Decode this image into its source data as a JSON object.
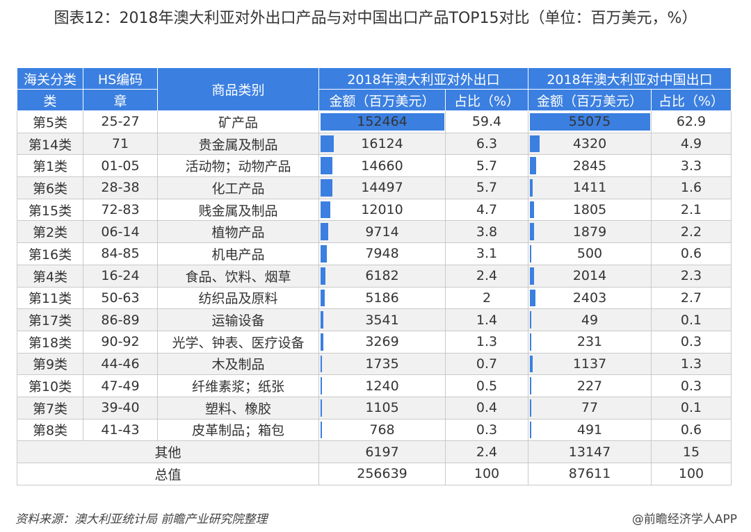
{
  "title": "图表12：2018年澳大利亚对外出口产品与对中国出口产品TOP15对比（单位：百万美元，%）",
  "header": {
    "col_category_1": "海关分类",
    "col_category_2": "类",
    "col_hs_1": "HS编码",
    "col_hs_2": "章",
    "col_product": "商品类别",
    "group_total": "2018年澳大利亚对外出口",
    "group_china": "2018年澳大利亚对中国出口",
    "amount_label": "金额（百万美元）",
    "share_label": "占比（%）"
  },
  "rows": [
    {
      "cat": "第5类",
      "hs": "25-27",
      "product": "矿产品",
      "total_amount": 152464,
      "total_share": "59.4",
      "china_amount": 55075,
      "china_share": "62.9"
    },
    {
      "cat": "第14类",
      "hs": "71",
      "product": "贵金属及制品",
      "total_amount": 16124,
      "total_share": "6.3",
      "china_amount": 4320,
      "china_share": "4.9"
    },
    {
      "cat": "第1类",
      "hs": "01-05",
      "product": "活动物；动物产品",
      "total_amount": 14660,
      "total_share": "5.7",
      "china_amount": 2845,
      "china_share": "3.3"
    },
    {
      "cat": "第6类",
      "hs": "28-38",
      "product": "化工产品",
      "total_amount": 14497,
      "total_share": "5.7",
      "china_amount": 1411,
      "china_share": "1.6"
    },
    {
      "cat": "第15类",
      "hs": "72-83",
      "product": "贱金属及制品",
      "total_amount": 12010,
      "total_share": "4.7",
      "china_amount": 1805,
      "china_share": "2.1"
    },
    {
      "cat": "第2类",
      "hs": "06-14",
      "product": "植物产品",
      "total_amount": 9714,
      "total_share": "3.8",
      "china_amount": 1879,
      "china_share": "2.2"
    },
    {
      "cat": "第16类",
      "hs": "84-85",
      "product": "机电产品",
      "total_amount": 7948,
      "total_share": "3.1",
      "china_amount": 500,
      "china_share": "0.6"
    },
    {
      "cat": "第4类",
      "hs": "16-24",
      "product": "食品、饮料、烟草",
      "total_amount": 6182,
      "total_share": "2.4",
      "china_amount": 2014,
      "china_share": "2.3"
    },
    {
      "cat": "第11类",
      "hs": "50-63",
      "product": "纺织品及原料",
      "total_amount": 5186,
      "total_share": "2",
      "china_amount": 2403,
      "china_share": "2.7"
    },
    {
      "cat": "第17类",
      "hs": "86-89",
      "product": "运输设备",
      "total_amount": 3541,
      "total_share": "1.4",
      "china_amount": 49,
      "china_share": "0.1"
    },
    {
      "cat": "第18类",
      "hs": "90-92",
      "product": "光学、钟表、医疗设备",
      "total_amount": 3269,
      "total_share": "1.3",
      "china_amount": 231,
      "china_share": "0.3"
    },
    {
      "cat": "第9类",
      "hs": "44-46",
      "product": "木及制品",
      "total_amount": 1735,
      "total_share": "0.7",
      "china_amount": 1137,
      "china_share": "1.3"
    },
    {
      "cat": "第10类",
      "hs": "47-49",
      "product": "纤维素浆；纸张",
      "total_amount": 1240,
      "total_share": "0.5",
      "china_amount": 227,
      "china_share": "0.3"
    },
    {
      "cat": "第7类",
      "hs": "39-40",
      "product": "塑料、橡胶",
      "total_amount": 1105,
      "total_share": "0.4",
      "china_amount": 77,
      "china_share": "0.1"
    },
    {
      "cat": "第8类",
      "hs": "41-43",
      "product": "皮革制品；箱包",
      "total_amount": 768,
      "total_share": "0.3",
      "china_amount": 491,
      "china_share": "0.6"
    }
  ],
  "other_row": {
    "label": "其他",
    "total_amount": "6197",
    "total_share": "2.4",
    "china_amount": "13147",
    "china_share": "15"
  },
  "sum_row": {
    "label": "总值",
    "total_amount": "256639",
    "total_share": "100",
    "china_amount": "87611",
    "china_share": "100"
  },
  "footer": {
    "source": "资料来源：澳大利亚统计局 前瞻产业研究院整理",
    "brand": "@前瞻经济学人APP"
  },
  "colors": {
    "accent": "#3b7fe0",
    "stripe": "#f1f1f1"
  }
}
